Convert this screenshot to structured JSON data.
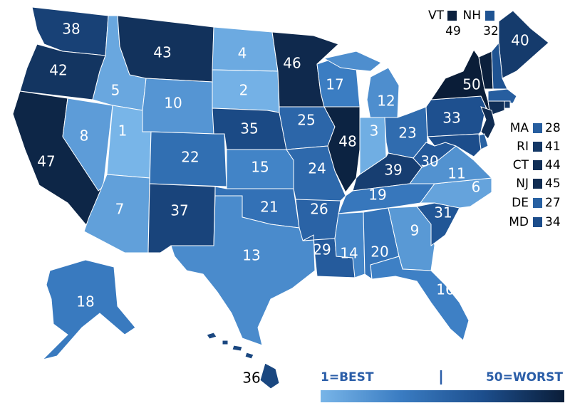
{
  "map": {
    "ranks": [
      38,
      42,
      47,
      5,
      8,
      43,
      10,
      1,
      7,
      22,
      37,
      4,
      2,
      35,
      15,
      21,
      13,
      46,
      25,
      24,
      26,
      29,
      17,
      48,
      12,
      3,
      23,
      39,
      19,
      14,
      20,
      9,
      16,
      31,
      6,
      11,
      30,
      33,
      50,
      40,
      18,
      36
    ],
    "callouts": [
      {
        "label": "VT",
        "rank": 49
      },
      {
        "label": "NH",
        "rank": 32
      },
      {
        "label": "MA",
        "rank": 28
      },
      {
        "label": "RI",
        "rank": 41
      },
      {
        "label": "CT",
        "rank": 44
      },
      {
        "label": "NJ",
        "rank": 45
      },
      {
        "label": "DE",
        "rank": 27
      },
      {
        "label": "MD",
        "rank": 34
      }
    ],
    "legend": {
      "best": "1=BEST",
      "worst": "50=WORST"
    }
  }
}
